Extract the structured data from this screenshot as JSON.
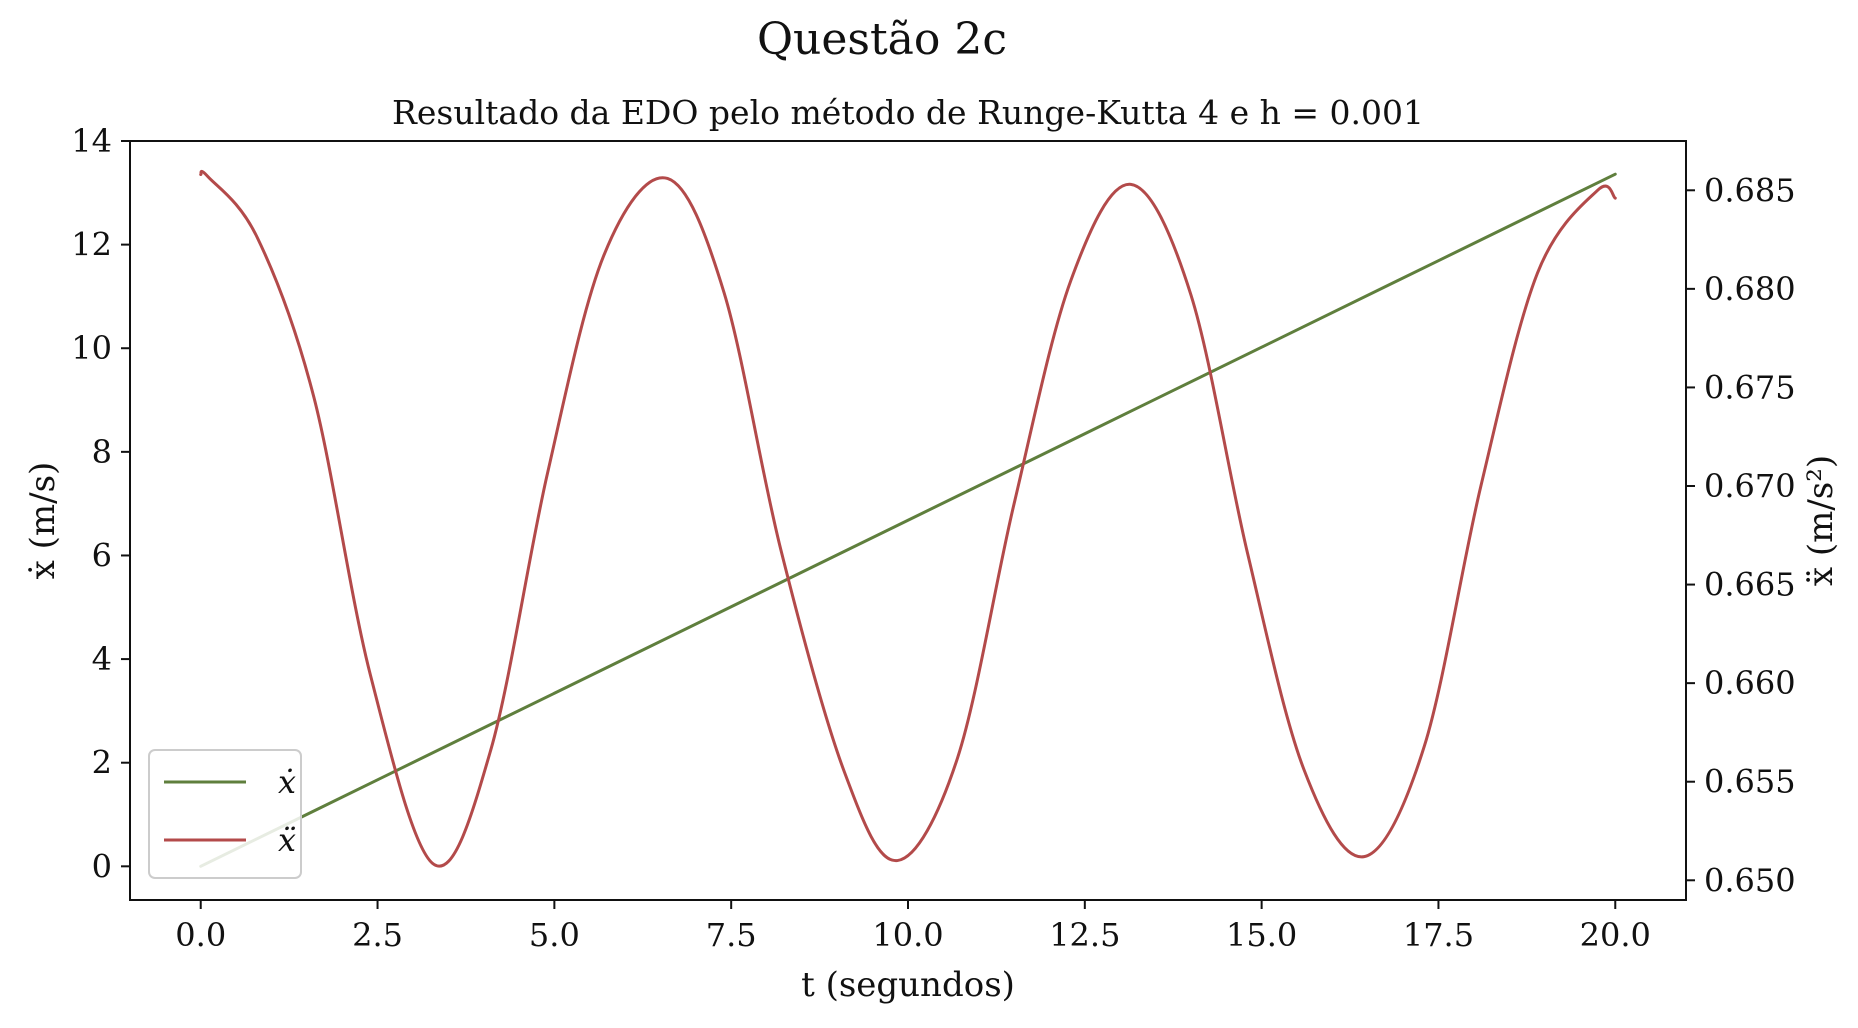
{
  "chart_data": {
    "type": "line",
    "title": "Questão 2c",
    "subtitle": "Resultado da EDO pelo método de Runge-Kutta 4 e h = 0.001",
    "xlabel": "t (segundos)",
    "ylabel_left": "ẋ (m/s)",
    "ylabel_right": "ẍ (m/s²)",
    "xlim": [
      -1,
      21
    ],
    "ylim_left": [
      -0.65,
      14
    ],
    "ylim_right": [
      0.649,
      0.6875
    ],
    "x_ticks": [
      "0.0",
      "2.5",
      "5.0",
      "7.5",
      "10.0",
      "12.5",
      "15.0",
      "17.5",
      "20.0"
    ],
    "y_left_ticks": [
      "0",
      "2",
      "4",
      "6",
      "8",
      "10",
      "12",
      "14"
    ],
    "y_right_ticks": [
      "0.650",
      "0.655",
      "0.660",
      "0.665",
      "0.670",
      "0.675",
      "0.680",
      "0.685"
    ],
    "grid": false,
    "legend": {
      "position": "lower-left",
      "entries": [
        "ẋ",
        "ẍ"
      ]
    },
    "series": [
      {
        "name": "ẋ",
        "axis": "left",
        "color": "#5f7f3d",
        "x": [
          0,
          2.5,
          5,
          7.5,
          10,
          12.5,
          15,
          17.5,
          20
        ],
        "y": [
          0,
          1.67,
          3.34,
          5.01,
          6.68,
          8.35,
          10.02,
          11.69,
          13.36
        ]
      },
      {
        "name": "ẍ",
        "axis": "right",
        "color": "#b34a4a",
        "x": [
          0,
          0.1,
          0.8,
          1.6,
          2.4,
          3.3,
          4.1,
          4.9,
          5.7,
          6.6,
          7.4,
          8.2,
          9.1,
          9.85,
          10.7,
          11.5,
          12.3,
          13.15,
          14.0,
          14.8,
          15.6,
          16.45,
          17.3,
          18.1,
          18.9,
          19.75,
          20.0
        ],
        "y": [
          0.6858,
          0.6857,
          0.6826,
          0.6745,
          0.6604,
          0.6508,
          0.6566,
          0.6706,
          0.6817,
          0.6856,
          0.6798,
          0.6668,
          0.6555,
          0.651,
          0.6562,
          0.6691,
          0.6804,
          0.6853,
          0.6797,
          0.6666,
          0.6556,
          0.6512,
          0.6568,
          0.67,
          0.6808,
          0.685,
          0.6846
        ]
      }
    ]
  }
}
